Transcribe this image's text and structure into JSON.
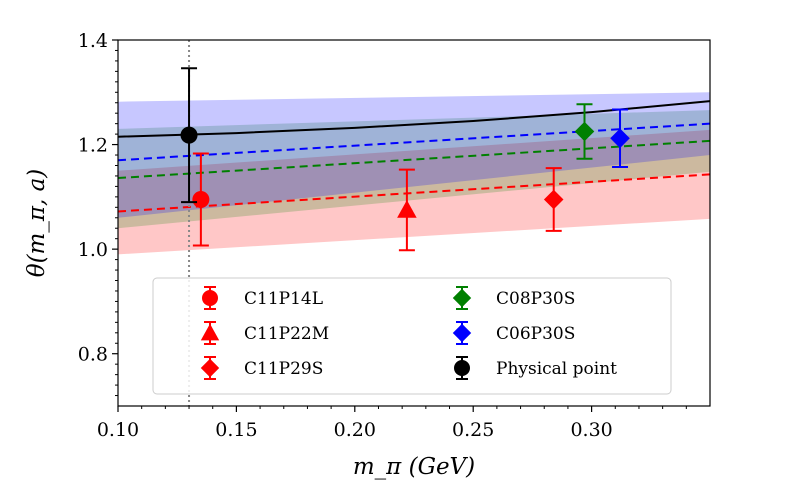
{
  "chart_data": {
    "type": "scatter",
    "xlabel": "m_π (GeV)",
    "ylabel": "θ(m_π, a)",
    "xlim": [
      0.1,
      0.35
    ],
    "ylim": [
      0.7,
      1.4
    ],
    "xticks": [
      0.1,
      0.15,
      0.2,
      0.25,
      0.3
    ],
    "xtick_labels": [
      "0.10",
      "0.15",
      "0.20",
      "0.25",
      "0.30"
    ],
    "yticks": [
      0.8,
      1.0,
      1.2,
      1.4
    ],
    "ytick_labels": [
      "0.8",
      "1.0",
      "1.2",
      "1.4"
    ],
    "grid": false,
    "legend_placement": "bottom-center",
    "physical_pion_mass_line": 0.13,
    "series": [
      {
        "name": "C11P14L",
        "marker": "circle",
        "color": "#ff0000",
        "x": 0.135,
        "y": 1.095,
        "err": 0.088
      },
      {
        "name": "C11P22M",
        "marker": "triangle",
        "color": "#ff0000",
        "x": 0.222,
        "y": 1.075,
        "err": 0.077
      },
      {
        "name": "C11P29S",
        "marker": "diamond",
        "color": "#ff0000",
        "x": 0.284,
        "y": 1.095,
        "err": 0.06
      },
      {
        "name": "C08P30S",
        "marker": "diamond",
        "color": "#008000",
        "x": 0.297,
        "y": 1.225,
        "err": 0.052
      },
      {
        "name": "C06P30S",
        "marker": "diamond",
        "color": "#0000ff",
        "x": 0.312,
        "y": 1.212,
        "err": 0.055
      },
      {
        "name": "Physical point",
        "marker": "circle",
        "color": "#000000",
        "x": 0.13,
        "y": 1.218,
        "err": 0.128
      }
    ],
    "fit_bands": [
      {
        "color": "#ff0000",
        "opacity": 0.22,
        "x": [
          0.1,
          0.35
        ],
        "center": [
          1.072,
          1.143
        ],
        "lower": [
          0.99,
          1.058
        ],
        "upper": [
          1.15,
          1.228
        ]
      },
      {
        "color": "#008000",
        "opacity": 0.2,
        "x": [
          0.1,
          0.35
        ],
        "center": [
          1.136,
          1.207
        ],
        "lower": [
          1.04,
          1.148
        ],
        "upper": [
          1.23,
          1.266
        ]
      },
      {
        "color": "#0000ff",
        "opacity": 0.22,
        "x": [
          0.1,
          0.35
        ],
        "center": [
          1.17,
          1.24
        ],
        "lower": [
          1.06,
          1.18
        ],
        "upper": [
          1.282,
          1.3
        ]
      }
    ],
    "physical_curve": {
      "color": "#000000",
      "x": [
        0.1,
        0.15,
        0.2,
        0.25,
        0.3,
        0.35
      ],
      "y": [
        1.215,
        1.222,
        1.232,
        1.245,
        1.262,
        1.283
      ]
    }
  }
}
